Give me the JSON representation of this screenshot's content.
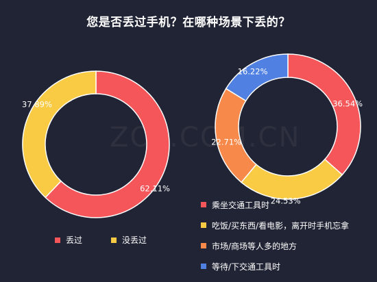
{
  "title": "您是否丢过手机？在哪种场景下丢的？",
  "watermark": "ZOL.COM.CN",
  "colors": {
    "red": "#f4565a",
    "yellow": "#f9cb45",
    "orange": "#f78a4a",
    "blue": "#4f80e2"
  },
  "chart_data": [
    {
      "type": "pie",
      "donut": true,
      "title": "",
      "slices": [
        {
          "label": "丢过",
          "value": 62.11,
          "display": "62.11%",
          "color": "#f4565a"
        },
        {
          "label": "没丢过",
          "value": 37.89,
          "display": "37.89%",
          "color": "#f9cb45"
        }
      ],
      "legend_position": "bottom"
    },
    {
      "type": "pie",
      "donut": true,
      "title": "",
      "slices": [
        {
          "label": "乘坐交通工具时",
          "value": 36.54,
          "display": "36.54%",
          "color": "#f4565a"
        },
        {
          "label": "吃饭/买东西/看电影，离开时手机忘拿",
          "value": 24.53,
          "display": "24.53%",
          "color": "#f9cb45"
        },
        {
          "label": "市场/商场等人多的地方",
          "value": 22.71,
          "display": "22.71%",
          "color": "#f78a4a"
        },
        {
          "label": "等待/下交通工具时",
          "value": 16.22,
          "display": "16.22%",
          "color": "#4f80e2"
        }
      ],
      "legend_position": "bottom-right"
    }
  ]
}
